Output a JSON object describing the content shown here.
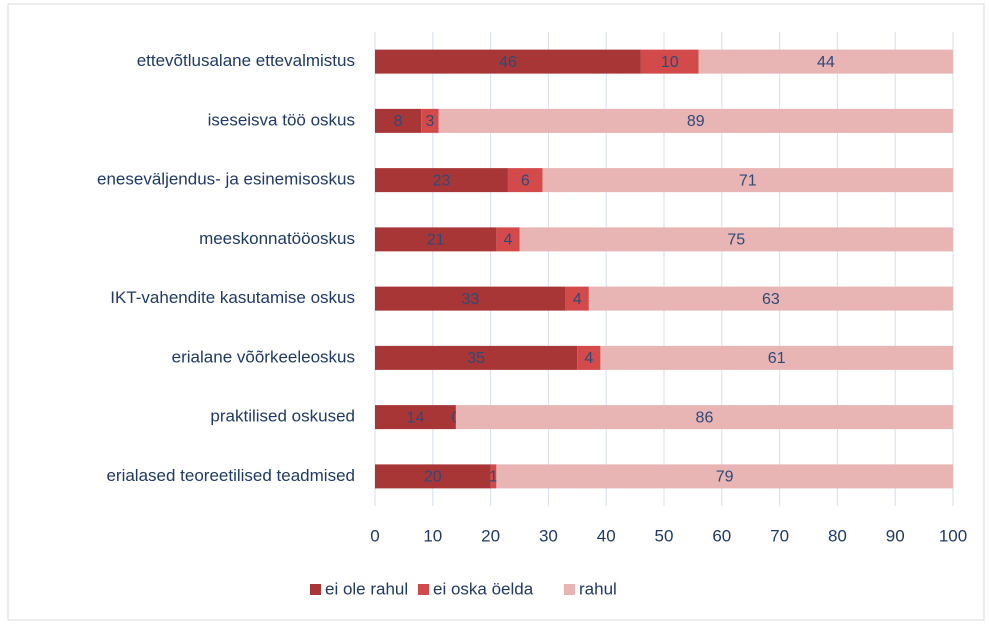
{
  "chart_data": {
    "type": "stacked_bar_horizontal",
    "categories": [
      "ettevõtlusalane ettevalmistus",
      "iseseisva töö  oskus",
      "eneseväljendus- ja esinemisoskus",
      "meeskonnatööoskus",
      "IKT-vahendite kasutamise oskus",
      "erialane võõrkeeleoskus",
      "praktilised oskused",
      "erialased teoreetilised teadmised"
    ],
    "series": [
      {
        "name": "ei ole rahul",
        "color": "#a93636",
        "values": [
          46,
          8,
          23,
          21,
          33,
          35,
          14,
          20
        ]
      },
      {
        "name": "ei oska öelda",
        "color": "#d24a4a",
        "values": [
          10,
          3,
          6,
          4,
          4,
          4,
          0,
          1
        ]
      },
      {
        "name": "rahul",
        "color": "#e8b4b4",
        "values": [
          44,
          89,
          71,
          75,
          63,
          61,
          86,
          79
        ]
      }
    ],
    "xlim": [
      0,
      100
    ],
    "xticks": [
      0,
      10,
      20,
      30,
      40,
      50,
      60,
      70,
      80,
      90,
      100
    ],
    "grid": true,
    "legend": "bottom"
  }
}
